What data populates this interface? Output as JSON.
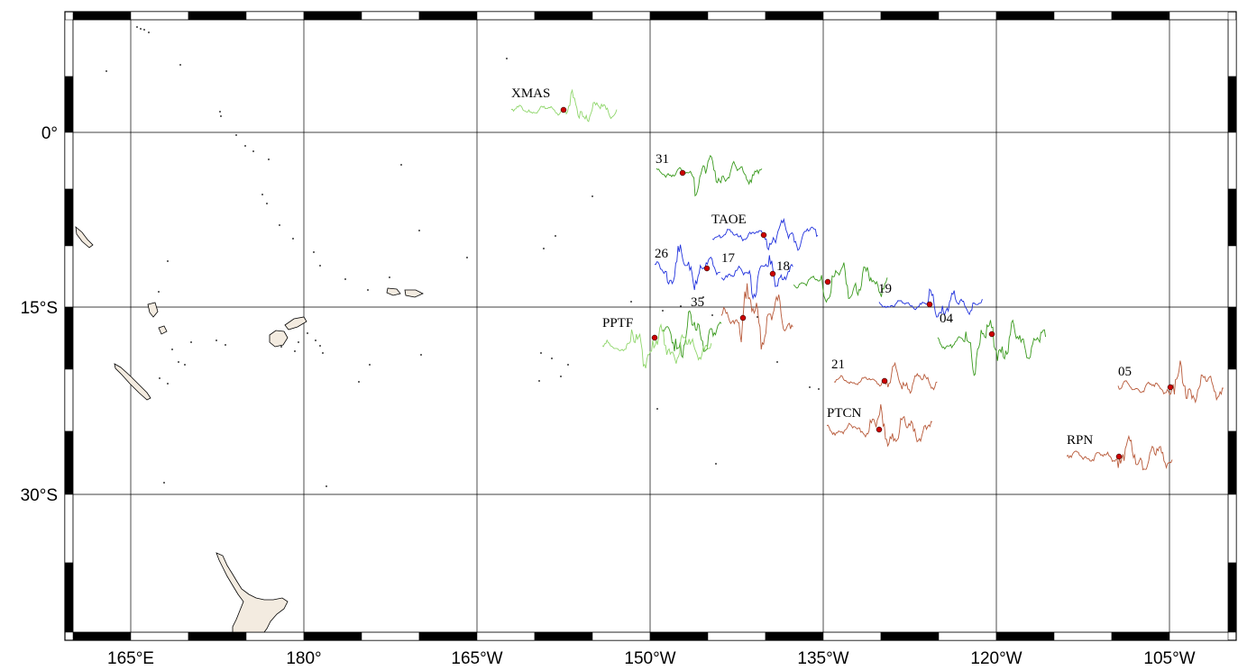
{
  "map": {
    "lon_ticks": [
      "165°E",
      "180°",
      "165°W",
      "150°W",
      "135°W",
      "120°W",
      "105°W"
    ],
    "lat_ticks": [
      "0°",
      "15°S",
      "30°S"
    ],
    "colors": {
      "land_fill": "#f3ebe0",
      "coastline": "#000000",
      "station_marker": "#cc0000",
      "trace_green": "#3a9a1e",
      "trace_lightgreen": "#8fd66b",
      "trace_blue": "#2233dd",
      "trace_brown": "#b85a3a",
      "frame_dark": "#000000",
      "frame_light": "#ffffff"
    },
    "stations": [
      {
        "name": "XMAS",
        "trace_color": "trace_lightgreen"
      },
      {
        "name": "31",
        "trace_color": "trace_green"
      },
      {
        "name": "TAOE",
        "trace_color": "trace_blue"
      },
      {
        "name": "26",
        "trace_color": "trace_blue"
      },
      {
        "name": "17",
        "trace_color": "trace_brown"
      },
      {
        "name": "18",
        "trace_color": "trace_blue"
      },
      {
        "name": "35",
        "trace_color": "trace_green"
      },
      {
        "name": "PPTF",
        "trace_color": "trace_lightgreen"
      },
      {
        "name": "19",
        "trace_color": "trace_blue"
      },
      {
        "name": "04",
        "trace_color": "trace_green"
      },
      {
        "name": "21",
        "trace_color": "trace_brown"
      },
      {
        "name": "PTCN",
        "trace_color": "trace_brown"
      },
      {
        "name": "05",
        "trace_color": "trace_brown"
      },
      {
        "name": "RPN",
        "trace_color": "trace_brown"
      }
    ]
  }
}
